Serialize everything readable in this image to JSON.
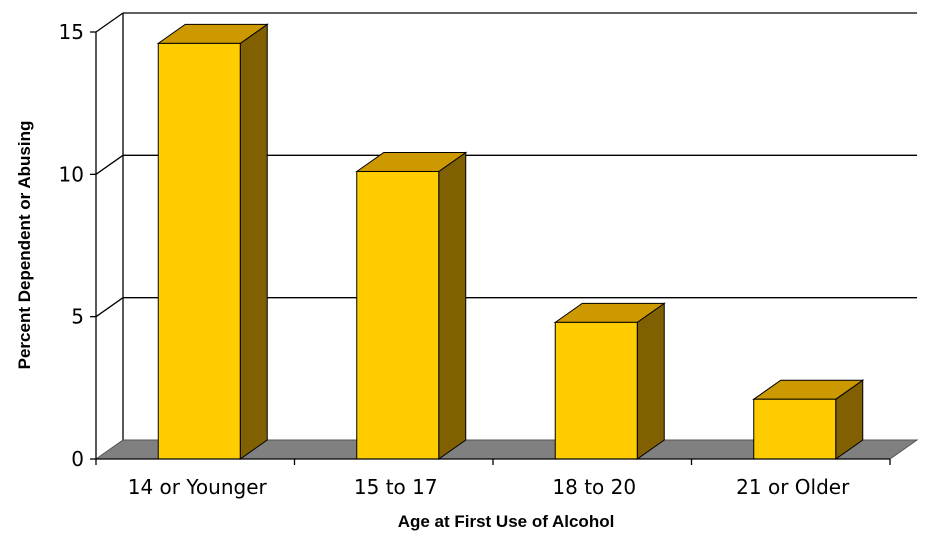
{
  "chart_data": {
    "type": "bar",
    "categories": [
      "14 or Younger",
      "15 to 17",
      "18 to 20",
      "21 or Older"
    ],
    "values": [
      14.6,
      10.1,
      4.8,
      2.1
    ],
    "xlabel": "Age at First Use of Alcohol",
    "ylabel": "Percent Dependent or Abusing",
    "ylim": [
      0,
      15
    ],
    "yticks": [
      "0",
      "5",
      "10",
      "15"
    ],
    "style": "3d",
    "grid": true,
    "legend": "none",
    "colors": {
      "bar_front": "#FFCC00",
      "bar_top": "#CC9900",
      "bar_side": "#806000",
      "floor": "#808080",
      "gridline": "#000000",
      "background": "#FFFFFF"
    }
  }
}
